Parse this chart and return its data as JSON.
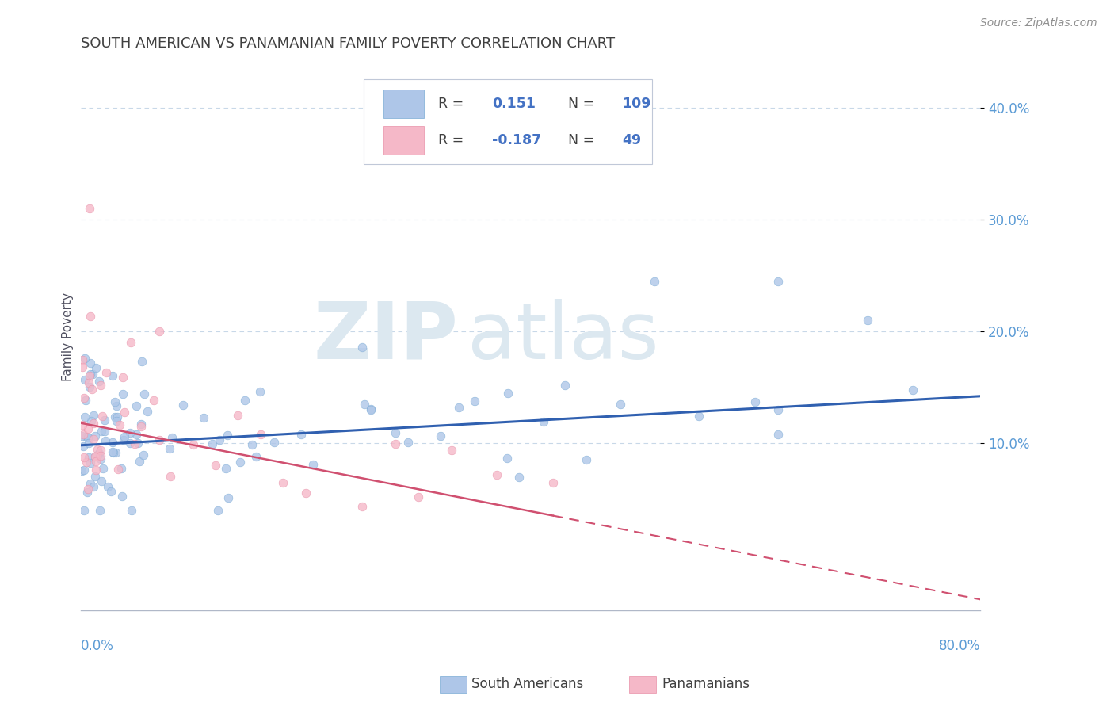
{
  "title": "SOUTH AMERICAN VS PANAMANIAN FAMILY POVERTY CORRELATION CHART",
  "source": "Source: ZipAtlas.com",
  "ylabel": "Family Poverty",
  "xlim": [
    0,
    0.8
  ],
  "ylim": [
    -0.05,
    0.44
  ],
  "yticks": [
    0.1,
    0.2,
    0.3,
    0.4
  ],
  "ytick_labels": [
    "10.0%",
    "20.0%",
    "30.0%",
    "40.0%"
  ],
  "sa_R": 0.151,
  "sa_N": 109,
  "pan_R": -0.187,
  "pan_N": 49,
  "sa_color": "#aec6e8",
  "sa_edgecolor": "#7aaad4",
  "pan_color": "#f5b8c8",
  "pan_edgecolor": "#e890a8",
  "sa_line_color": "#3060b0",
  "pan_line_color": "#d05070",
  "title_color": "#404040",
  "axis_label_color": "#5b9bd5",
  "grid_color": "#c8d8e8",
  "watermark_color": "#dce8f0",
  "legend_edge_color": "#c0c8d8",
  "legend_face_color": "#ffffff",
  "text_blue": "#4472c4",
  "sa_trend_x0": 0.0,
  "sa_trend_y0": 0.098,
  "sa_trend_x1": 0.8,
  "sa_trend_y1": 0.142,
  "pan_trend_x0": 0.0,
  "pan_trend_y0": 0.118,
  "pan_trend_x1": 0.8,
  "pan_trend_y1": -0.04
}
